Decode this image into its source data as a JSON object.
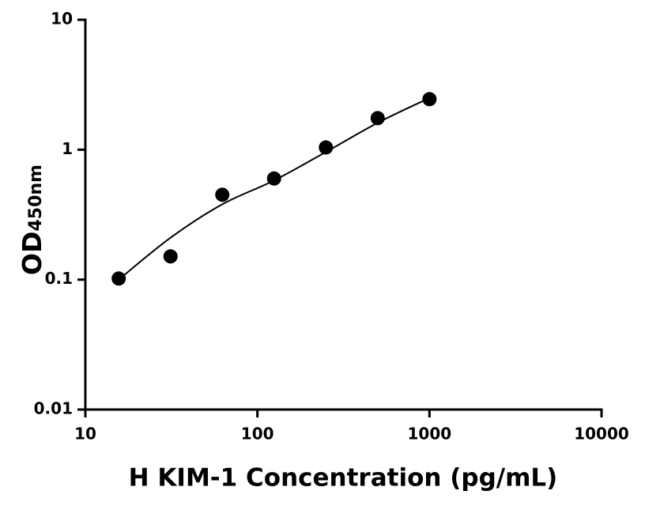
{
  "chart_data": {
    "type": "scatter",
    "xlabel": "H KIM-1 Concentration (pg/mL)",
    "ylabel": "OD",
    "ylabel_subscript": "450nm",
    "xscale": "log",
    "yscale": "log",
    "xlim": [
      10,
      10000
    ],
    "xticks": [
      10,
      100,
      1000,
      10000
    ],
    "ylim": [
      0.01,
      10
    ],
    "yticks": [
      0.01,
      0.1,
      1,
      10
    ],
    "series": [
      {
        "type": "line",
        "color": "#000000",
        "x": [
          15.625,
          31.25,
          62.5,
          125,
          250,
          500,
          1000
        ],
        "values": [
          0.1,
          0.21,
          0.38,
          0.58,
          0.96,
          1.61,
          2.5
        ]
      },
      {
        "type": "scatter",
        "color": "#000000",
        "x": [
          15.625,
          31.25,
          62.5,
          125,
          250,
          500,
          1000
        ],
        "values": [
          0.102,
          0.151,
          0.45,
          0.6,
          1.04,
          1.75,
          2.45
        ]
      }
    ]
  }
}
